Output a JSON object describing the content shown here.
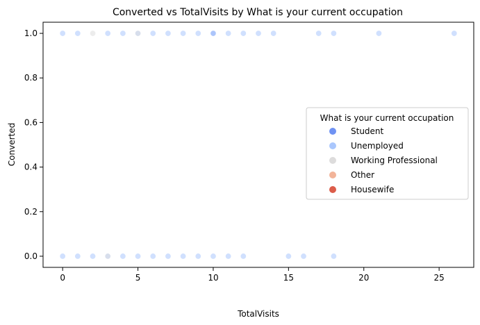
{
  "chart_data": {
    "type": "scatter",
    "title": "Converted vs TotalVisits by What is your current occupation",
    "xlabel": "TotalVisits",
    "ylabel": "Converted",
    "xlim": [
      -1.3,
      27.3
    ],
    "ylim": [
      -0.05,
      1.05
    ],
    "xticks": [
      0,
      5,
      10,
      15,
      20,
      25
    ],
    "yticks": [
      0.0,
      0.2,
      0.4,
      0.6,
      0.8,
      1.0
    ],
    "xtick_labels": [
      "0",
      "5",
      "10",
      "15",
      "20",
      "25"
    ],
    "ytick_labels": [
      "0.0",
      "0.2",
      "0.4",
      "0.6",
      "0.8",
      "1.0"
    ],
    "legend": {
      "title": "What is your current occupation",
      "placement": "center-right"
    },
    "series": [
      {
        "name": "Student",
        "color": "#6f92f3",
        "points": [
          [
            10,
            1
          ]
        ]
      },
      {
        "name": "Unemployed",
        "color": "#aac7fd",
        "points": [
          [
            0,
            1
          ],
          [
            1,
            1
          ],
          [
            3,
            1
          ],
          [
            4,
            1
          ],
          [
            5,
            1
          ],
          [
            6,
            1
          ],
          [
            7,
            1
          ],
          [
            8,
            1
          ],
          [
            9,
            1
          ],
          [
            10,
            1
          ],
          [
            11,
            1
          ],
          [
            12,
            1
          ],
          [
            13,
            1
          ],
          [
            14,
            1
          ],
          [
            17,
            1
          ],
          [
            18,
            1
          ],
          [
            21,
            1
          ],
          [
            26,
            1
          ],
          [
            0,
            0
          ],
          [
            1,
            0
          ],
          [
            2,
            0
          ],
          [
            3,
            0
          ],
          [
            4,
            0
          ],
          [
            5,
            0
          ],
          [
            6,
            0
          ],
          [
            7,
            0
          ],
          [
            8,
            0
          ],
          [
            9,
            0
          ],
          [
            10,
            0
          ],
          [
            11,
            0
          ],
          [
            12,
            0
          ],
          [
            15,
            0
          ],
          [
            16,
            0
          ],
          [
            18,
            0
          ]
        ]
      },
      {
        "name": "Working Professional",
        "color": "#dddcdc",
        "points": [
          [
            2,
            1
          ],
          [
            5,
            1
          ],
          [
            3,
            0
          ]
        ]
      },
      {
        "name": "Other",
        "color": "#f2b499",
        "points": []
      },
      {
        "name": "Housewife",
        "color": "#dc5d4a",
        "points": []
      }
    ]
  }
}
